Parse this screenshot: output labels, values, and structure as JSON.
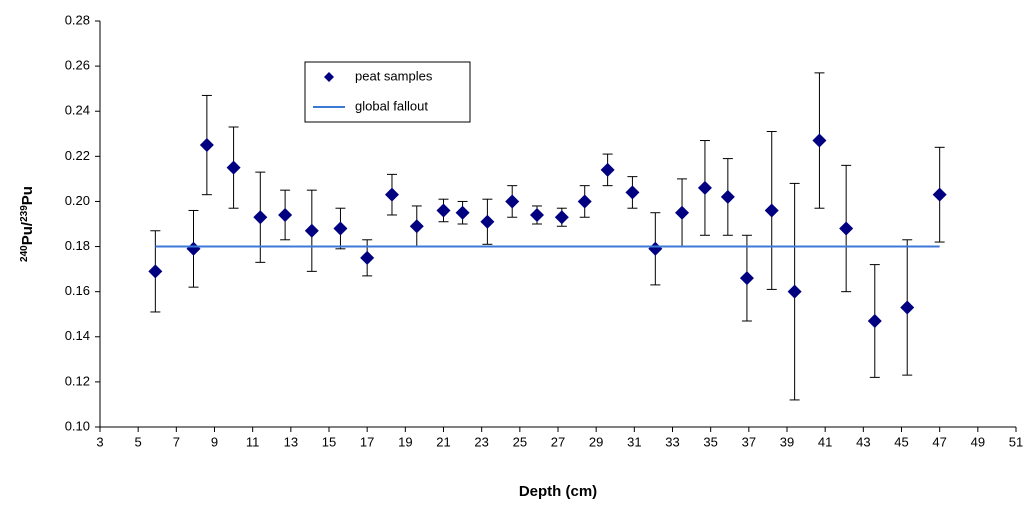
{
  "chart_data": {
    "type": "scatter",
    "xlabel": "Depth (cm)",
    "ylabel_parts": [
      "240",
      "Pu/",
      "239",
      "Pu"
    ],
    "xlim": [
      3,
      51
    ],
    "xticks": [
      3,
      5,
      7,
      9,
      11,
      13,
      15,
      17,
      19,
      21,
      23,
      25,
      27,
      29,
      31,
      33,
      35,
      37,
      39,
      41,
      43,
      45,
      47,
      49,
      51
    ],
    "ylim": [
      0.1,
      0.28
    ],
    "yticks": [
      {
        "value": 0.1,
        "label": "0.10"
      },
      {
        "value": 0.12,
        "label": "0.12"
      },
      {
        "value": 0.14,
        "label": "0.14"
      },
      {
        "value": 0.16,
        "label": "0.16"
      },
      {
        "value": 0.18,
        "label": "0.18"
      },
      {
        "value": 0.2,
        "label": "0.20"
      },
      {
        "value": 0.22,
        "label": "0.22"
      },
      {
        "value": 0.24,
        "label": "0.24"
      },
      {
        "value": 0.26,
        "label": "0.26"
      },
      {
        "value": 0.28,
        "label": "0.28"
      }
    ],
    "series": [
      {
        "name": "peat samples",
        "color": "#000080",
        "x": [
          5.9,
          7.9,
          8.6,
          10.0,
          11.4,
          12.7,
          14.1,
          15.6,
          17.0,
          18.3,
          19.6,
          21.0,
          22.0,
          23.3,
          24.6,
          25.9,
          27.2,
          28.4,
          29.6,
          30.9,
          32.1,
          33.5,
          34.7,
          35.9,
          36.9,
          38.2,
          39.4,
          40.7,
          42.1,
          43.6,
          45.3,
          47.0
        ],
        "values": [
          0.169,
          0.179,
          0.225,
          0.215,
          0.193,
          0.194,
          0.187,
          0.188,
          0.175,
          0.203,
          0.189,
          0.196,
          0.195,
          0.191,
          0.2,
          0.194,
          0.193,
          0.2,
          0.214,
          0.204,
          0.179,
          0.195,
          0.206,
          0.202,
          0.166,
          0.196,
          0.16,
          0.227,
          0.188,
          0.147,
          0.153,
          0.203
        ],
        "errors": [
          0.018,
          0.017,
          0.022,
          0.018,
          0.02,
          0.011,
          0.018,
          0.009,
          0.008,
          0.009,
          0.009,
          0.005,
          0.005,
          0.01,
          0.007,
          0.004,
          0.004,
          0.007,
          0.007,
          0.007,
          0.016,
          0.015,
          0.021,
          0.017,
          0.019,
          0.035,
          0.048,
          0.03,
          0.028,
          0.025,
          0.03,
          0.021
        ]
      },
      {
        "name": "global fallout",
        "color": "#3c78d8",
        "line": true,
        "x": [
          5.9,
          47.0
        ],
        "values": [
          0.18,
          0.18
        ]
      }
    ],
    "legend": "upper-left"
  }
}
